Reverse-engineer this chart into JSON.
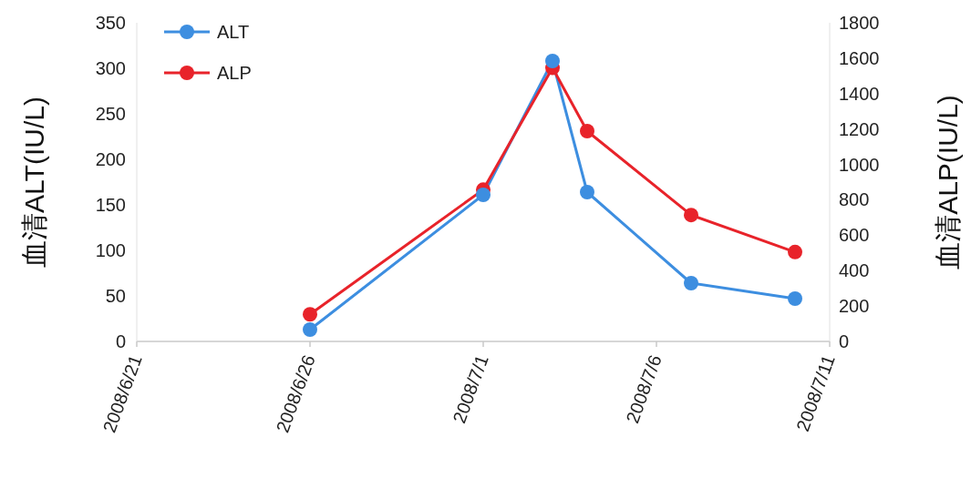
{
  "chart_data": {
    "type": "line",
    "ylabel": "血清ALT(IU/L)",
    "y2label": "血清ALP(IU/L)",
    "xlim": [
      "2008-06-21",
      "2008-07-11"
    ],
    "xticks": [
      {
        "value": "2008-06-21",
        "label": "2008/6/21"
      },
      {
        "value": "2008-06-26",
        "label": "2008/6/26"
      },
      {
        "value": "2008-07-01",
        "label": "2008/7/1"
      },
      {
        "value": "2008-07-06",
        "label": "2008/7/6"
      },
      {
        "value": "2008-07-11",
        "label": "2008/7/11"
      }
    ],
    "ylim": [
      0,
      350
    ],
    "yticks": [
      0,
      50,
      100,
      150,
      200,
      250,
      300,
      350
    ],
    "y2lim": [
      0,
      1800
    ],
    "y2ticks": [
      0,
      200,
      400,
      600,
      800,
      1000,
      1200,
      1400,
      1600,
      1800
    ],
    "x": [
      "2008-06-26",
      "2008-07-01",
      "2008-07-03",
      "2008-07-04",
      "2008-07-07",
      "2008-07-10"
    ],
    "series": [
      {
        "name": "ALT",
        "color": "#3d8ee0",
        "values": [
          13,
          161,
          308,
          164,
          64,
          47
        ]
      },
      {
        "name": "ALP",
        "color": "#e8232a",
        "axis": "y2",
        "values": [
          153,
          857,
          1545,
          1188,
          714,
          505
        ]
      }
    ],
    "marker": "circle",
    "legend": "top left",
    "grid": false
  }
}
